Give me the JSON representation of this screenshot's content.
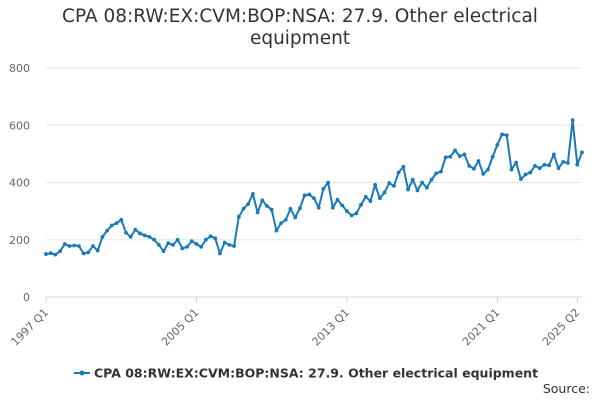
{
  "chart_data": {
    "type": "line",
    "title_lines": [
      "CPA 08:RW:EX:CVM:BOP:NSA: 27.9. Other electrical",
      "equipment"
    ],
    "xlabel": "",
    "ylabel": "",
    "ylim": [
      0,
      800
    ],
    "y_ticks": [
      "0",
      "200",
      "400",
      "600",
      "800"
    ],
    "x_ticks": [
      "1997 Q1",
      "2005 Q1",
      "2013 Q1",
      "2021 Q1",
      "2025 Q2"
    ],
    "x_start": "1997 Q1",
    "grid": true,
    "legend_position": "bottom",
    "series": [
      {
        "name": "CPA 08:RW:EX:CVM:BOP:NSA: 27.9. Other electrical equipment",
        "color": "#1a7ab7",
        "values": [
          150,
          153,
          148,
          160,
          185,
          178,
          180,
          178,
          152,
          156,
          178,
          162,
          210,
          232,
          250,
          258,
          270,
          225,
          210,
          235,
          222,
          215,
          210,
          200,
          182,
          160,
          188,
          182,
          200,
          170,
          175,
          195,
          185,
          175,
          200,
          212,
          205,
          152,
          190,
          182,
          178,
          280,
          308,
          325,
          360,
          295,
          338,
          318,
          305,
          232,
          258,
          270,
          308,
          278,
          310,
          355,
          358,
          345,
          312,
          378,
          400,
          312,
          340,
          320,
          300,
          285,
          292,
          322,
          350,
          335,
          392,
          345,
          365,
          398,
          388,
          435,
          455,
          375,
          410,
          372,
          400,
          382,
          410,
          432,
          438,
          488,
          490,
          512,
          492,
          498,
          458,
          448,
          475,
          430,
          445,
          490,
          532,
          568,
          565,
          445,
          470,
          412,
          428,
          435,
          458,
          450,
          462,
          460,
          498,
          450,
          472,
          468,
          618,
          462,
          505
        ]
      }
    ]
  },
  "source_label": "Source:"
}
